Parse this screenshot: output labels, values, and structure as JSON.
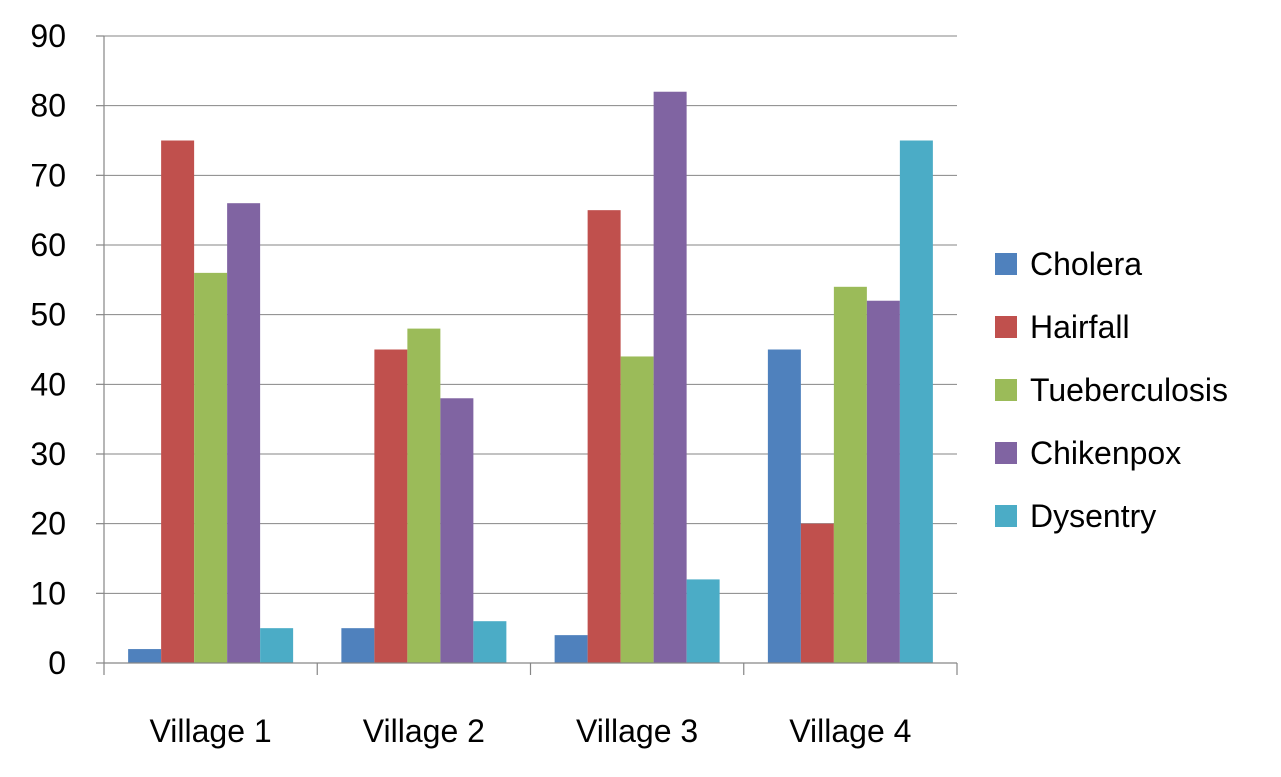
{
  "chart_data": {
    "type": "bar",
    "title": "",
    "xlabel": "",
    "ylabel": "",
    "categories": [
      "Village 1",
      "Village 2",
      "Village 3",
      "Village 4"
    ],
    "series": [
      {
        "name": "Cholera",
        "color": "#4F81BD",
        "values": [
          2,
          5,
          4,
          45
        ]
      },
      {
        "name": "Hairfall",
        "color": "#C0504D",
        "values": [
          75,
          45,
          65,
          20
        ]
      },
      {
        "name": "Tueberculosis",
        "color": "#9BBB59",
        "values": [
          56,
          48,
          44,
          54
        ]
      },
      {
        "name": "Chikenpox",
        "color": "#8064A2",
        "values": [
          66,
          38,
          82,
          52
        ]
      },
      {
        "name": "Dysentry",
        "color": "#4BACC6",
        "values": [
          5,
          6,
          12,
          75
        ]
      }
    ],
    "ylim": [
      0,
      90
    ],
    "yticks": [
      "0",
      "10",
      "20",
      "30",
      "40",
      "50",
      "60",
      "70",
      "80",
      "90"
    ],
    "grid": true,
    "legend_position": "right"
  }
}
